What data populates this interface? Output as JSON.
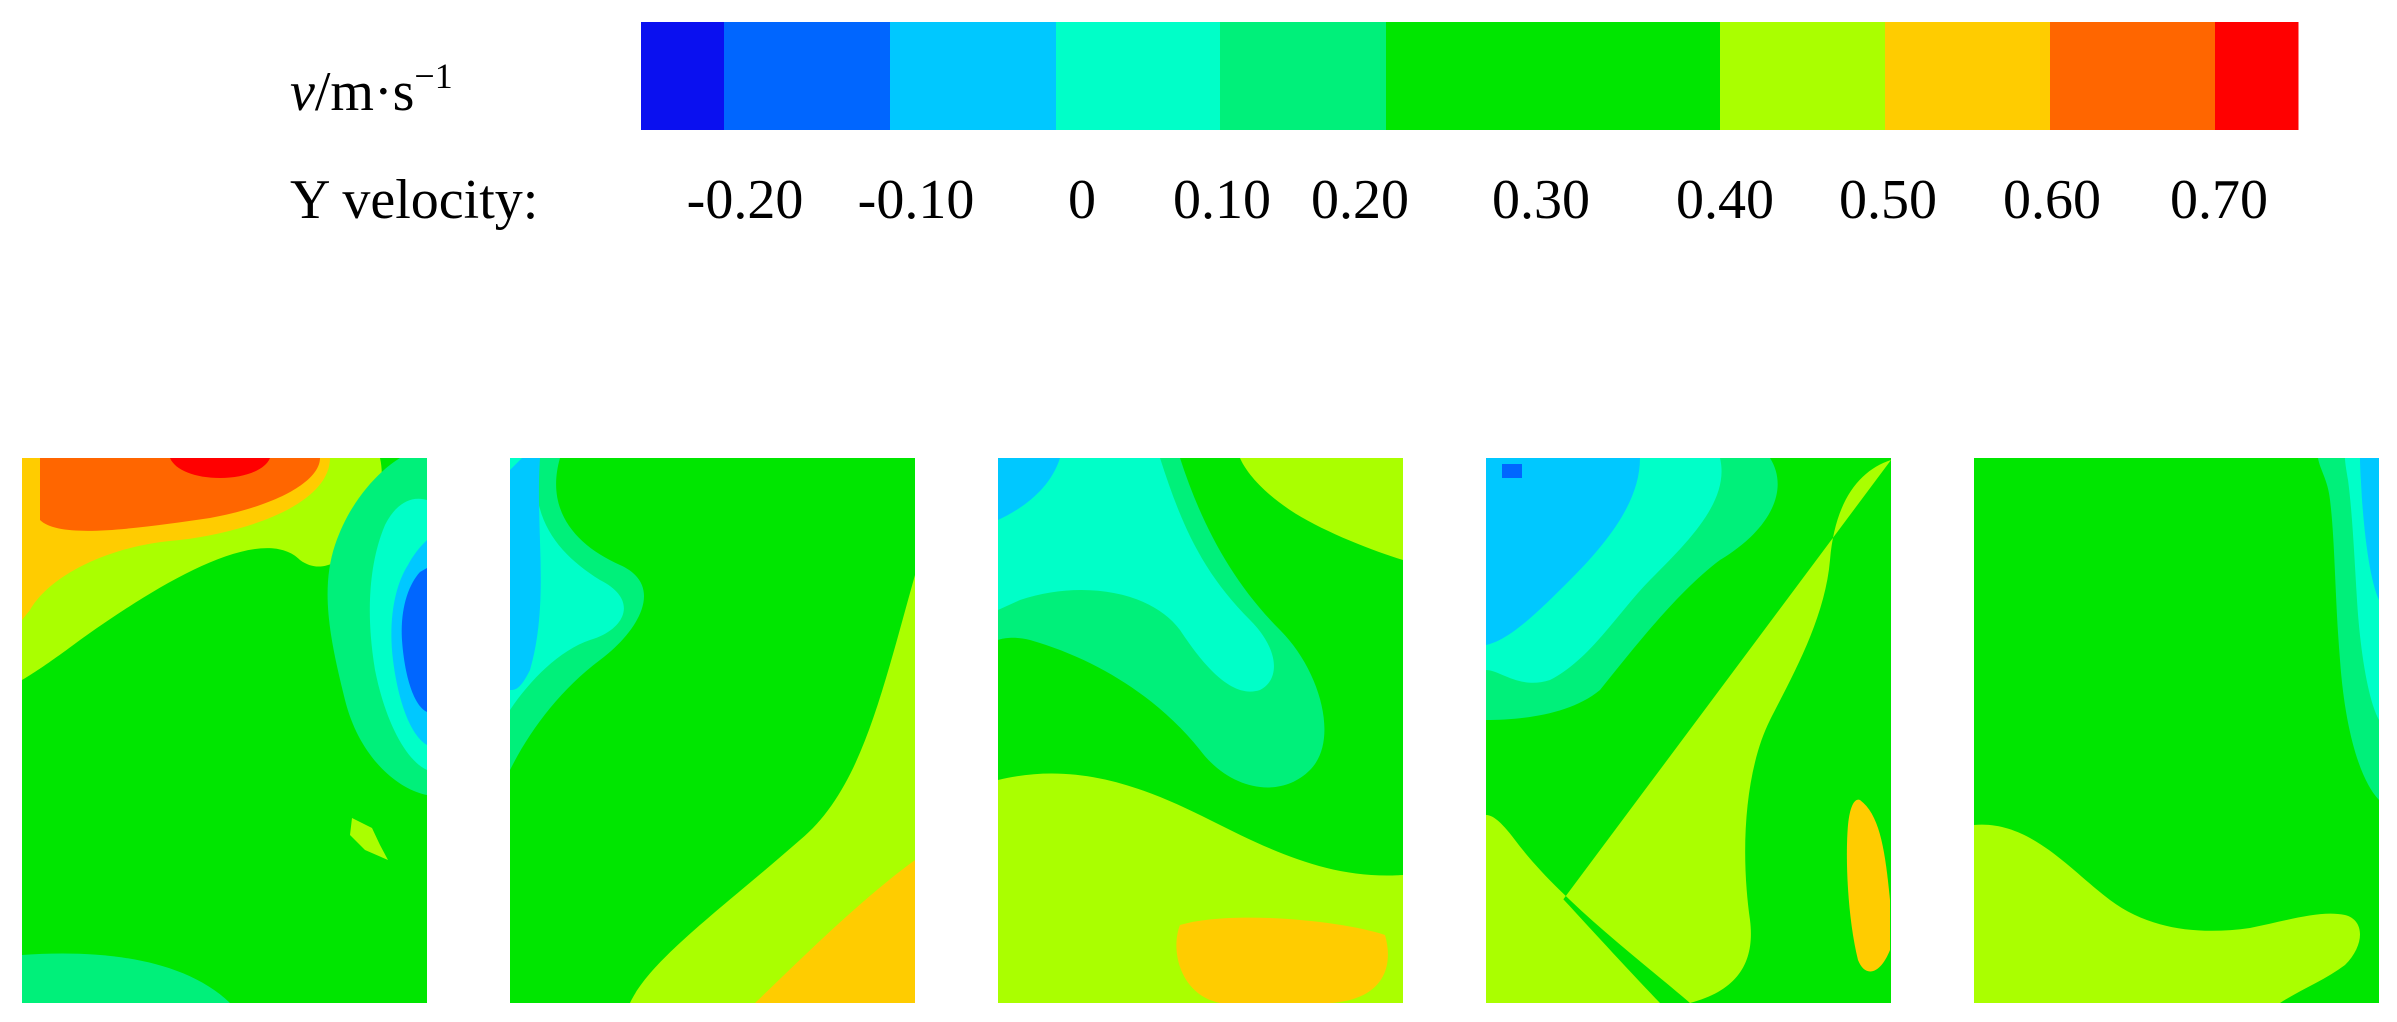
{
  "legend": {
    "unit_var": "v",
    "unit_rest": "/m·s",
    "unit_exp": "−1",
    "label": "Y velocity:",
    "ticks": [
      "-0.20",
      "-0.10",
      "0",
      "0.10",
      "0.20",
      "0.30",
      "0.40",
      "0.50",
      "0.60",
      "0.70"
    ],
    "colors": [
      "#0a10f0",
      "#0066ff",
      "#00c8ff",
      "#00ffc8",
      "#00f07a",
      "#00e600",
      "#aaff00",
      "#ffcc00",
      "#ff6600",
      "#ff0000"
    ]
  },
  "panel_count": 5
}
